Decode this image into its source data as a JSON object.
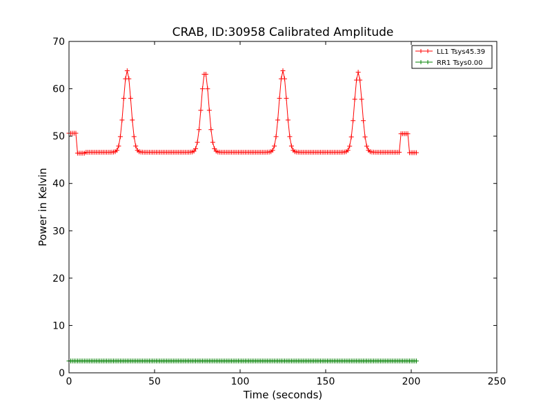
{
  "chart_data": {
    "type": "line",
    "title": "CRAB, ID:30958 Calibrated Amplitude",
    "xlabel": "Time (seconds)",
    "ylabel": "Power in Kelvin",
    "xlim": [
      0,
      250
    ],
    "ylim": [
      0,
      70
    ],
    "xticks": [
      "0",
      "50",
      "100",
      "150",
      "200",
      "250"
    ],
    "yticks": [
      "0",
      "10",
      "20",
      "30",
      "40",
      "50",
      "60",
      "70"
    ],
    "grid": false,
    "legend_position": "top-right",
    "series": [
      {
        "name": "LL1 Tsys45.39",
        "color": "#ff0000",
        "marker": "+",
        "model": {
          "start": 0,
          "end": 203,
          "step": 1,
          "baseline": 46.6,
          "peaks": [
            {
              "center": 34,
              "height": 63.8
            },
            {
              "center": 79.5,
              "height": 63.5
            },
            {
              "center": 125,
              "height": 63.8
            },
            {
              "center": 169,
              "height": 63.5
            }
          ],
          "overrides": [
            {
              "from": 0,
              "to": 4,
              "value": 50.6
            },
            {
              "from": 5,
              "to": 9,
              "value": 46.4
            },
            {
              "from": 194,
              "to": 198,
              "value": 50.5
            },
            {
              "from": 199,
              "to": 203,
              "value": 46.5
            }
          ]
        }
      },
      {
        "name": "RR1 Tsys0.00",
        "color": "#008000",
        "marker": "+",
        "model": {
          "start": 0,
          "end": 203,
          "step": 1,
          "baseline": 2.5,
          "peaks": [],
          "overrides": []
        }
      }
    ]
  }
}
